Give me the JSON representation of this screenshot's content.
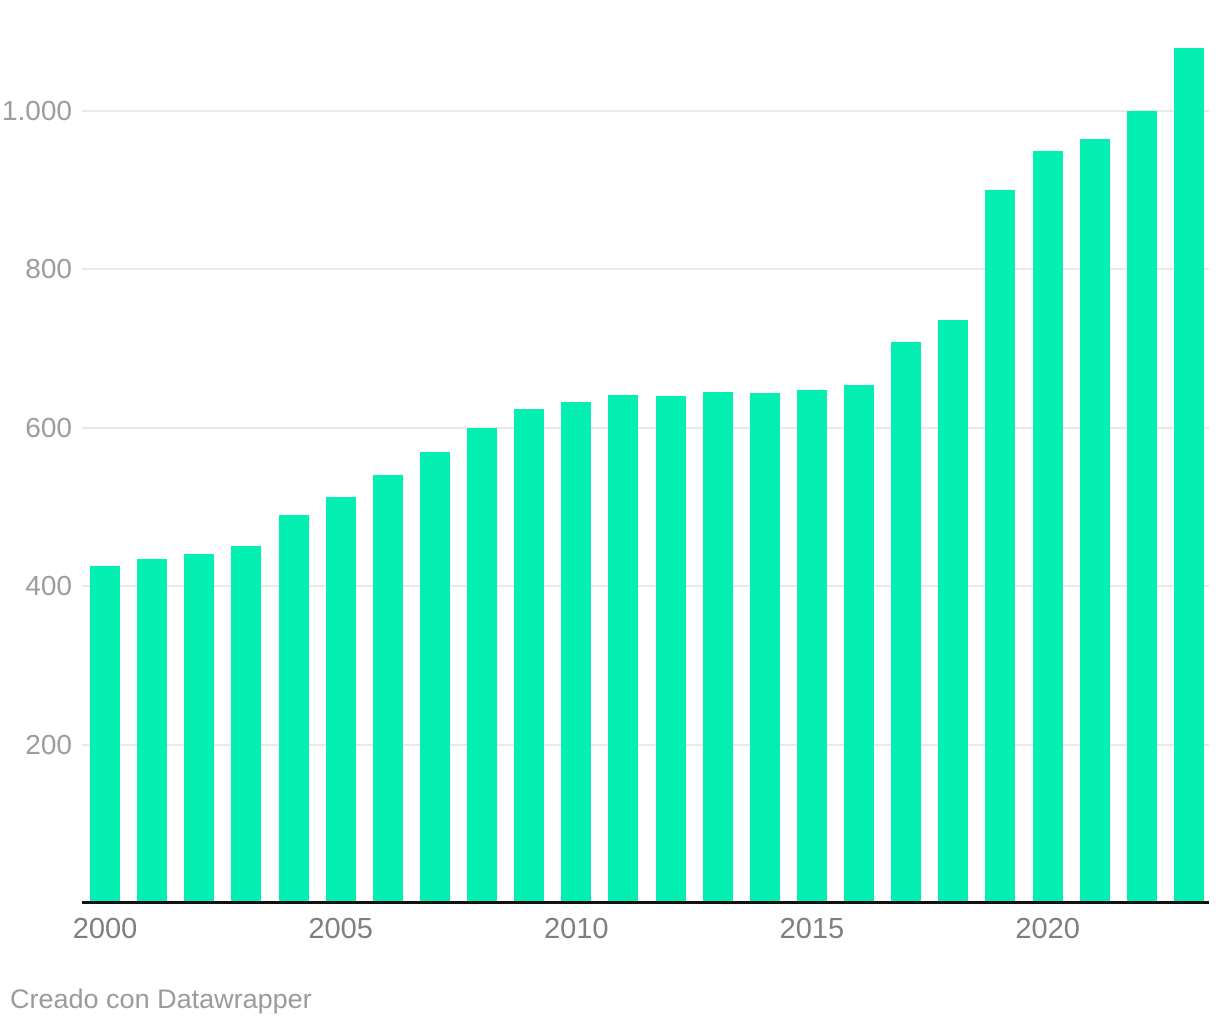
{
  "footer": {
    "credit": "Creado con Datawrapper"
  },
  "colors": {
    "bar": "#04f0b2",
    "grid": "#e9e9e9",
    "baseline": "#111111",
    "y_label": "#9d9d9d",
    "x_label": "#7f7f7f",
    "footer_text": "#9b9b9b"
  },
  "chart_data": {
    "type": "bar",
    "title": "",
    "xlabel": "",
    "ylabel": "",
    "categories": [
      2000,
      2001,
      2002,
      2003,
      2004,
      2005,
      2006,
      2007,
      2008,
      2009,
      2010,
      2011,
      2012,
      2013,
      2014,
      2015,
      2016,
      2017,
      2018,
      2019,
      2020,
      2021,
      2022,
      2023
    ],
    "values": [
      425,
      434,
      441,
      451,
      490,
      513,
      541,
      570,
      600,
      624,
      633,
      641,
      640,
      645,
      644,
      648,
      654,
      708,
      736,
      900,
      950,
      965,
      1000,
      1080
    ],
    "ylim": [
      0,
      1090
    ],
    "grid": "horizontal-only",
    "legend": "none",
    "y_ticks": [
      {
        "value": 200,
        "label": "200"
      },
      {
        "value": 400,
        "label": "400"
      },
      {
        "value": 600,
        "label": "600"
      },
      {
        "value": 800,
        "label": "800"
      },
      {
        "value": 1000,
        "label": "1.000"
      }
    ],
    "x_ticks": [
      {
        "year": 2000,
        "label": "2000"
      },
      {
        "year": 2005,
        "label": "2005"
      },
      {
        "year": 2010,
        "label": "2010"
      },
      {
        "year": 2015,
        "label": "2015"
      },
      {
        "year": 2020,
        "label": "2020"
      }
    ]
  }
}
